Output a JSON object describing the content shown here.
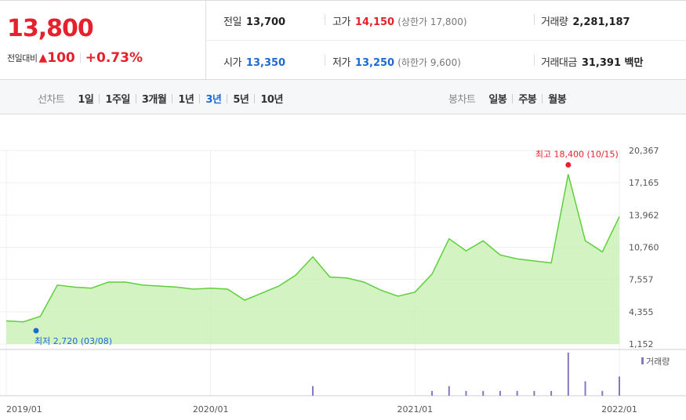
{
  "quote": {
    "price": "13,800",
    "change_label": "전일대비",
    "change_arrow": "▲",
    "change_amount": "100",
    "change_percent": "+0.73%",
    "prev_close_label": "전일",
    "prev_close": "13,700",
    "high_label": "고가",
    "high": "14,150",
    "upper_limit": "(상한가 17,800)",
    "volume_label": "거래량",
    "volume": "2,281,187",
    "open_label": "시가",
    "open": "13,350",
    "low_label": "저가",
    "low": "13,250",
    "lower_limit": "(하한가 9,600)",
    "amount_label": "거래대금",
    "amount": "31,391 백만",
    "colors": {
      "up": "#e8202b",
      "down": "#1a6ad6"
    }
  },
  "toolbar": {
    "line_chart_label": "선차트",
    "periods": [
      "1일",
      "1주일",
      "3개월",
      "1년",
      "3년",
      "5년",
      "10년"
    ],
    "active_period": "3년",
    "candle_chart_label": "봉차트",
    "candles": [
      "일봉",
      "주봉",
      "월봉"
    ]
  },
  "chart_data": [
    {
      "type": "area",
      "x_dates": [
        "2019-01",
        "2019-02",
        "2019-03",
        "2019-04",
        "2019-05",
        "2019-06",
        "2019-07",
        "2019-08",
        "2019-09",
        "2019-10",
        "2019-11",
        "2019-12",
        "2020-01",
        "2020-02",
        "2020-03",
        "2020-04",
        "2020-05",
        "2020-06",
        "2020-07",
        "2020-08",
        "2020-09",
        "2020-10",
        "2020-11",
        "2020-12",
        "2021-01",
        "2021-02",
        "2021-03",
        "2021-04",
        "2021-05",
        "2021-06",
        "2021-07",
        "2021-08",
        "2021-09",
        "2021-10",
        "2021-11",
        "2021-12",
        "2022-01"
      ],
      "values": [
        3450,
        3350,
        3900,
        7000,
        6800,
        6700,
        7300,
        7300,
        7000,
        6900,
        6800,
        6600,
        6700,
        6600,
        5500,
        6200,
        6900,
        8000,
        9800,
        7800,
        7700,
        7300,
        6500,
        5900,
        6300,
        8100,
        11600,
        10400,
        11400,
        10000,
        9600,
        9400,
        9200,
        18000,
        11400,
        10300,
        13800
      ],
      "y_ticks": [
        "20,367",
        "17,165",
        "13,962",
        "10,760",
        "7,557",
        "4,355",
        "1,152"
      ],
      "ylim": [
        1152,
        20367
      ],
      "x_ticks": [
        "2019/01",
        "2020/01",
        "2021/01",
        "2022/01"
      ],
      "annotations": {
        "max_label": "최고 18,400 (10/15)",
        "min_label": "최저 2,720 (03/08)"
      },
      "line_color": "#5fcf3a",
      "fill_color": "#c8f0b4"
    },
    {
      "type": "bar",
      "legend": "거래량",
      "values": [
        0,
        0,
        0,
        0,
        0,
        0,
        0,
        0,
        0,
        0,
        0,
        0,
        0,
        0,
        0,
        0,
        0,
        0,
        2,
        0,
        0,
        0,
        0,
        0,
        0,
        1,
        2,
        1,
        1,
        1,
        1,
        1,
        1,
        9,
        3,
        1,
        4
      ],
      "color": "#8a74c4"
    }
  ]
}
